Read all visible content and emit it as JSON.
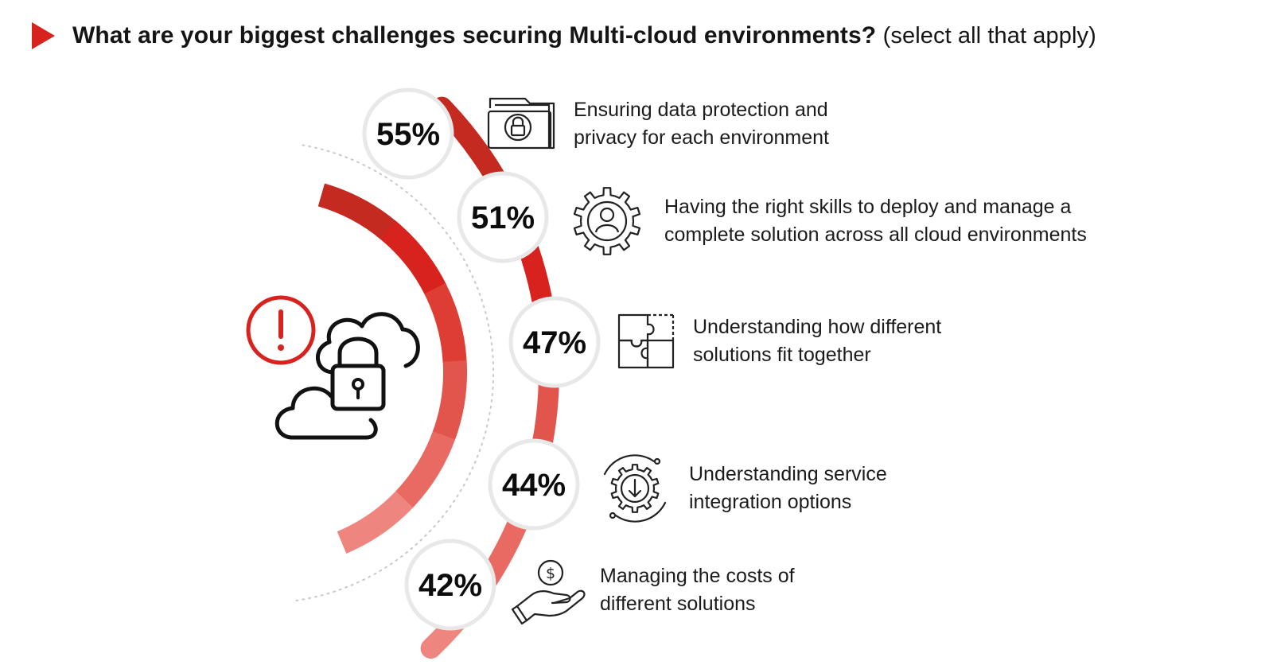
{
  "title": {
    "main": "What are your biggest challenges securing Multi-cloud environments?",
    "sub": "(select all that apply)"
  },
  "colors": {
    "accent": "#d8221d",
    "arc_segments": [
      "#c42a20",
      "#d8221d",
      "#dd3d32",
      "#e2554c",
      "#e86a62",
      "#ee857e"
    ]
  },
  "icons": {
    "hero": "cloud-lock-alert-icon",
    "items": [
      "folder-lock-icon",
      "gear-person-icon",
      "puzzle-pieces-icon",
      "gear-download-icon",
      "hand-coin-icon"
    ]
  },
  "chart_data": {
    "type": "bar",
    "categories": [
      "Ensuring data protection and privacy for each environment",
      "Having the right skills to deploy and manage a complete solution across all cloud environments",
      "Understanding how different solutions fit together",
      "Understanding service integration options",
      "Managing the costs of different solutions"
    ],
    "values": [
      55,
      51,
      47,
      44,
      42
    ],
    "value_labels": [
      "55%",
      "51%",
      "47%",
      "44%",
      "42%"
    ],
    "label_lines": [
      [
        "Ensuring data protection and",
        "privacy for each environment"
      ],
      [
        "Having the right skills to deploy and manage a",
        "complete solution across all cloud environments"
      ],
      [
        "Understanding how different",
        "solutions fit together"
      ],
      [
        "Understanding service",
        "integration options"
      ],
      [
        "Managing the costs of",
        "different solutions"
      ]
    ],
    "unit": "%"
  }
}
